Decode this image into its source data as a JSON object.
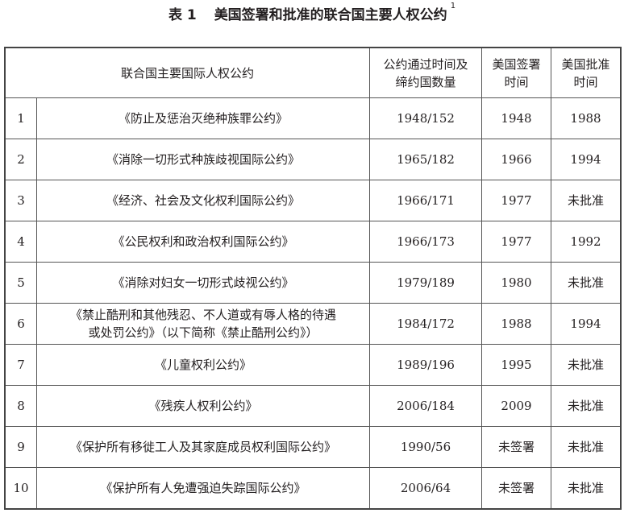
{
  "title": {
    "label": "表 1",
    "text": "美国签署和批准的联合国主要人权公约",
    "footnote": "1"
  },
  "headers": {
    "convention": "联合国主要国际人权公约",
    "adopted_line1": "公约通过时间及",
    "adopted_line2": "缔约国数量",
    "signed_line1": "美国签署",
    "signed_line2": "时间",
    "ratified_line1": "美国批准",
    "ratified_line2": "时间"
  },
  "rows": [
    {
      "no": "1",
      "name": "《防止及惩治灭绝种族罪公约》",
      "adopted": "1948/152",
      "signed": "1948",
      "ratified": "1988"
    },
    {
      "no": "2",
      "name": "《消除一切形式种族歧视国际公约》",
      "adopted": "1965/182",
      "signed": "1966",
      "ratified": "1994"
    },
    {
      "no": "3",
      "name": "《经济、社会及文化权利国际公约》",
      "adopted": "1966/171",
      "signed": "1977",
      "ratified": "未批准"
    },
    {
      "no": "4",
      "name": "《公民权利和政治权利国际公约》",
      "adopted": "1966/173",
      "signed": "1977",
      "ratified": "1992"
    },
    {
      "no": "5",
      "name": "《消除对妇女一切形式歧视公约》",
      "adopted": "1979/189",
      "signed": "1980",
      "ratified": "未批准"
    },
    {
      "no": "6",
      "name": "《禁止酷刑和其他残忍、不人道或有辱人格的待遇",
      "name2": "或处罚公约》（以下简称《禁止酷刑公约》）",
      "adopted": "1984/172",
      "signed": "1988",
      "ratified": "1994"
    },
    {
      "no": "7",
      "name": "《儿童权利公约》",
      "adopted": "1989/196",
      "signed": "1995",
      "ratified": "未批准"
    },
    {
      "no": "8",
      "name": "《残疾人权利公约》",
      "adopted": "2006/184",
      "signed": "2009",
      "ratified": "未批准"
    },
    {
      "no": "9",
      "name": "《保护所有移徙工人及其家庭成员权利国际公约》",
      "adopted": "1990/56",
      "signed": "未签署",
      "ratified": "未批准"
    },
    {
      "no": "10",
      "name": "《保护所有人免遭强迫失踪国际公约》",
      "adopted": "2006/64",
      "signed": "未签署",
      "ratified": "未批准"
    }
  ]
}
